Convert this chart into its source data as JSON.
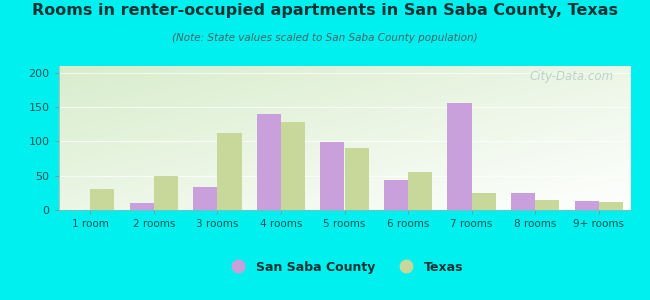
{
  "categories": [
    "1 room",
    "2 rooms",
    "3 rooms",
    "4 rooms",
    "5 rooms",
    "6 rooms",
    "7 rooms",
    "8 rooms",
    "9+ rooms"
  ],
  "san_saba": [
    0,
    10,
    33,
    140,
    99,
    44,
    156,
    25,
    13
  ],
  "texas": [
    30,
    49,
    112,
    128,
    91,
    56,
    25,
    15,
    12
  ],
  "san_saba_color": "#c9a0dc",
  "texas_color": "#c8d89a",
  "title": "Rooms in renter-occupied apartments in San Saba County, Texas",
  "subtitle": "(Note: State values scaled to San Saba County population)",
  "ylim": [
    0,
    210
  ],
  "yticks": [
    0,
    50,
    100,
    150,
    200
  ],
  "background_color": "#00f0f0",
  "plot_bg_green": "#d8edcc",
  "bar_width": 0.38,
  "legend_san_saba": "San Saba County",
  "legend_texas": "Texas",
  "watermark": "City-Data.com"
}
